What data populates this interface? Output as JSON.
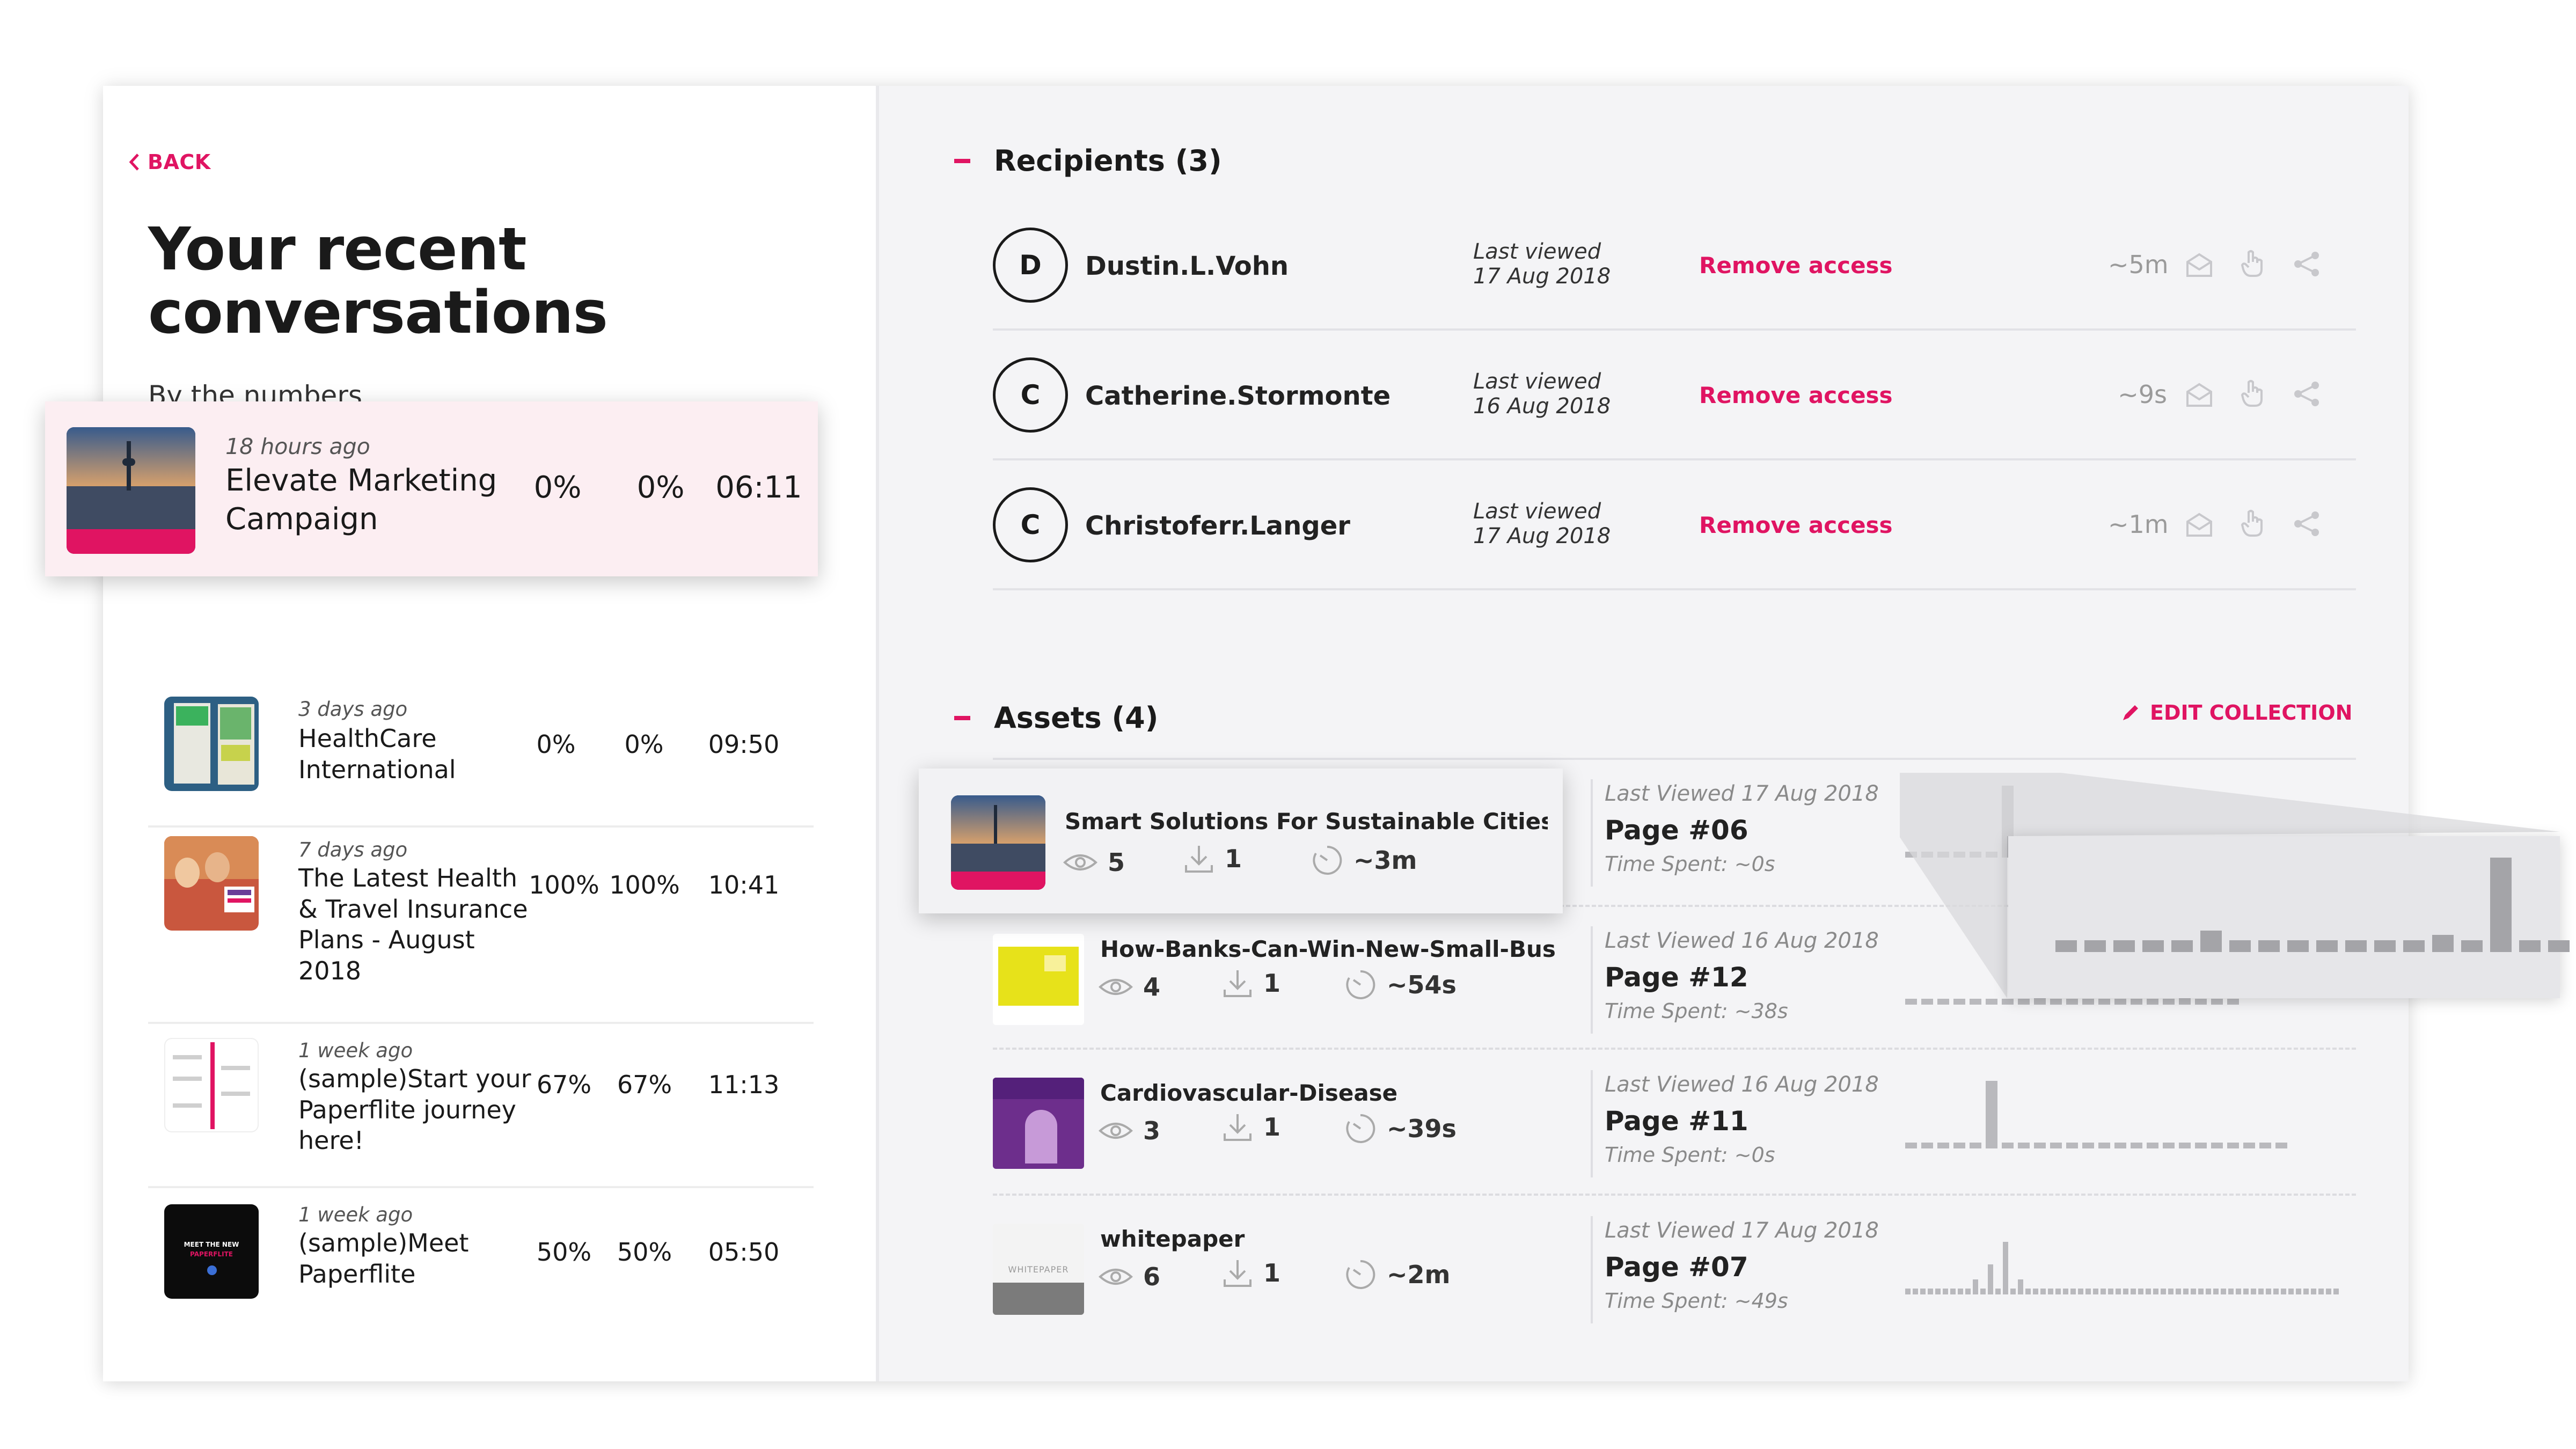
{
  "left": {
    "back": "BACK",
    "title": "Your recent conversations",
    "subtitle": "By the numbers",
    "conversations": [
      {
        "ago": "18 hours ago",
        "name": "Elevate Marketing Campaign",
        "views": "0%",
        "downloads": "0%",
        "time": "06:11"
      },
      {
        "ago": "3 days ago",
        "name": "HealthCare International",
        "views": "0%",
        "downloads": "0%",
        "time": "09:50"
      },
      {
        "ago": "7 days ago",
        "name": "The Latest Health & Travel Insurance Plans - August 2018",
        "views": "100%",
        "downloads": "100%",
        "time": "10:41"
      },
      {
        "ago": "1 week ago",
        "name": "(sample)Start your Paperflite journey here!",
        "views": "67%",
        "downloads": "67%",
        "time": "11:13"
      },
      {
        "ago": "1 week ago",
        "name": "(sample)Meet Paperflite",
        "views": "50%",
        "downloads": "50%",
        "time": "05:50"
      }
    ],
    "thumb_texts": {
      "meet": "MEET THE NEW",
      "brand": "PAPERFLITE"
    }
  },
  "recipients": {
    "title": "Recipients (3)",
    "items": [
      {
        "initial": "D",
        "name": "Dustin.L.Vohn",
        "last_label": "Last viewed",
        "last_date": "17 Aug 2018",
        "remove": "Remove access",
        "duration": "~5m"
      },
      {
        "initial": "C",
        "name": "Catherine.Stormonte",
        "last_label": "Last viewed",
        "last_date": "16 Aug 2018",
        "remove": "Remove access",
        "duration": "~9s"
      },
      {
        "initial": "C",
        "name": "Christoferr.Langer",
        "last_label": "Last viewed",
        "last_date": "17 Aug 2018",
        "remove": "Remove access",
        "duration": "~1m"
      }
    ]
  },
  "assets": {
    "title": "Assets (4)",
    "edit": "EDIT COLLECTION",
    "items": [
      {
        "title": "Smart Solutions For Sustainable Cities",
        "views": "5",
        "downloads": "1",
        "time": "~3m",
        "last_viewed": "Last Viewed 17 Aug 2018",
        "page": "Page #06",
        "time_spent": "Time Spent: ~0s",
        "bars": [
          0.04,
          0.04,
          0.04,
          0.04,
          0.04,
          0.04,
          0.48
        ]
      },
      {
        "title": "How-Banks-Can-Win-New-Small-Busines...",
        "views": "4",
        "downloads": "1",
        "time": "~54s",
        "last_viewed": "Last Viewed 16 Aug 2018",
        "page": "Page #12",
        "time_spent": "Time Spent: ~38s",
        "bars": [
          0.04,
          0.04,
          0.04,
          0.04,
          0.04,
          0.04,
          0.04,
          0.04,
          0.08,
          0.04,
          0.04,
          0.04,
          0.04,
          0.04,
          0.04,
          0.04,
          0.04,
          0.08,
          0.04,
          0.04,
          0.04
        ]
      },
      {
        "title": "Cardiovascular-Disease",
        "views": "3",
        "downloads": "1",
        "time": "~39s",
        "last_viewed": "Last Viewed 16 Aug 2018",
        "page": "Page #11",
        "time_spent": "Time Spent: ~0s",
        "bars": [
          0.04,
          0.04,
          0.04,
          0.04,
          0.04,
          0.45,
          0.04,
          0.04,
          0.04,
          0.04,
          0.04,
          0.04,
          0.04,
          0.04,
          0.04,
          0.04,
          0.04,
          0.04,
          0.04,
          0.04,
          0.04,
          0.04,
          0.04,
          0.04
        ]
      },
      {
        "title": "whitepaper",
        "views": "6",
        "downloads": "1",
        "time": "~2m",
        "last_viewed": "Last Viewed 17 Aug 2018",
        "page": "Page #07",
        "time_spent": "Time Spent: ~49s",
        "bars": [
          0.04,
          0.04,
          0.04,
          0.04,
          0.04,
          0.04,
          0.04,
          0.04,
          0.04,
          0.1,
          0.04,
          0.2,
          0.04,
          0.35,
          0.04,
          0.1,
          0.04,
          0.04,
          0.04,
          0.04,
          0.04,
          0.04,
          0.04,
          0.04,
          0.04,
          0.04,
          0.04,
          0.04,
          0.04,
          0.04,
          0.04,
          0.04,
          0.04,
          0.04,
          0.04,
          0.04,
          0.04,
          0.04,
          0.04,
          0.04,
          0.04,
          0.04,
          0.04,
          0.04,
          0.04,
          0.04,
          0.04,
          0.04,
          0.04,
          0.04,
          0.04,
          0.04,
          0.04,
          0.04,
          0.04,
          0.04,
          0.04,
          0.04
        ]
      }
    ],
    "thumb_texts": {
      "whitepaper": "WHITEPAPER"
    },
    "zoom_bars": [
      0.06,
      0.06,
      0.06,
      0.06,
      0.06,
      0.11,
      0.06,
      0.06,
      0.06,
      0.06,
      0.06,
      0.06,
      0.06,
      0.09,
      0.06,
      0.49,
      0.06,
      0.06
    ]
  },
  "colors": {
    "accent": "#e01462",
    "muted_bar": "#b9b9bd"
  }
}
